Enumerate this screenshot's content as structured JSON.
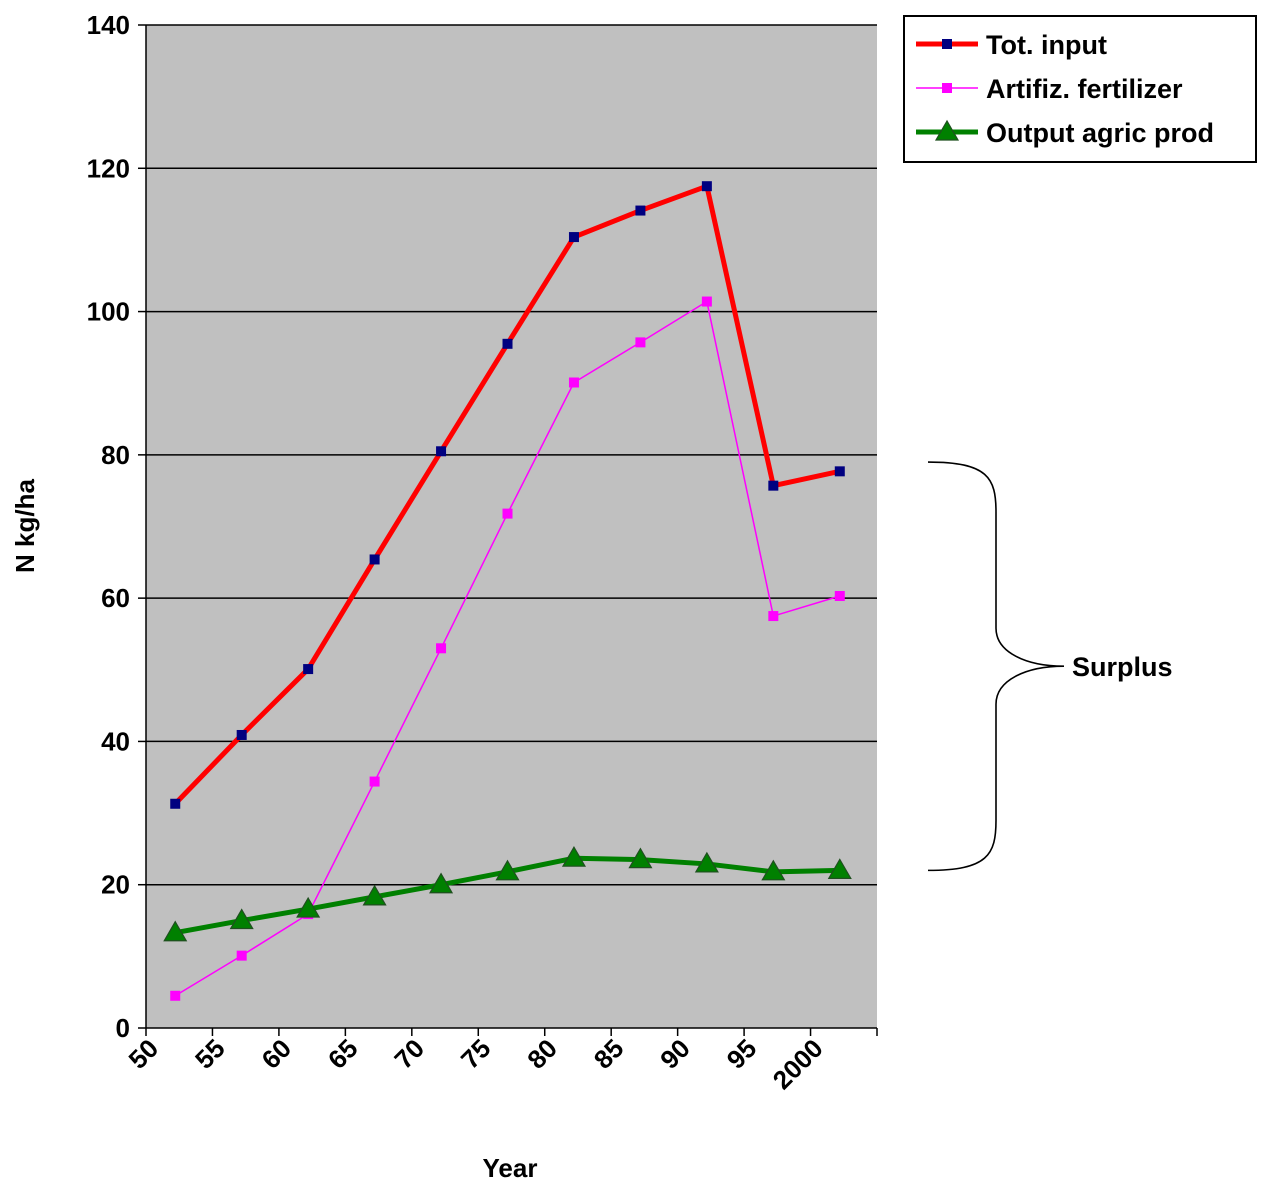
{
  "chart_data": {
    "type": "line",
    "xlabel": "Year",
    "ylabel": "N kg/ha",
    "ylim": [
      0,
      140
    ],
    "y_ticks": [
      "0",
      "20",
      "40",
      "60",
      "80",
      "100",
      "120",
      "140"
    ],
    "x_tick_labels": [
      "50",
      "55",
      "60",
      "65",
      "70",
      "75",
      "80",
      "85",
      "90",
      "95",
      "2000"
    ],
    "categories": [
      "50",
      "55",
      "60",
      "65",
      "70",
      "75",
      "80",
      "85",
      "90",
      "95",
      "2000"
    ],
    "grid": "horizontal",
    "plot_background": "#c0c0c0",
    "legend_position": "top-right",
    "series": [
      {
        "name": "Tot. input",
        "color": "#ff0000",
        "marker": "square",
        "marker_color": "#000080",
        "values": [
          31.3,
          40.9,
          50.1,
          65.4,
          80.5,
          95.5,
          110.4,
          114.1,
          117.5,
          75.7,
          77.7
        ]
      },
      {
        "name": "Artifiz. fertilizer",
        "color": "#ff00ff",
        "marker": "square",
        "marker_color": "#ff00ff",
        "values": [
          4.5,
          10.1,
          15.9,
          34.4,
          53.0,
          71.8,
          90.1,
          95.7,
          101.4,
          57.5,
          60.3
        ]
      },
      {
        "name": "Output agric prod",
        "color": "#008000",
        "marker": "triangle",
        "marker_color": "#008000",
        "values": [
          13.3,
          15.0,
          16.6,
          18.3,
          20.0,
          21.8,
          23.7,
          23.5,
          22.9,
          21.8,
          22.0
        ]
      }
    ],
    "annotation": {
      "text": "Surplus",
      "y_range": [
        22,
        79
      ]
    }
  }
}
